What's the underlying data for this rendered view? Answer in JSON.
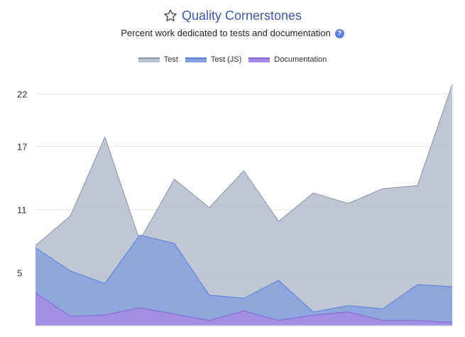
{
  "header": {
    "title": "Quality Cornerstones",
    "subtitle": "Percent work dedicated to tests and documentation",
    "title_color": "#3d5aa6"
  },
  "icons": {
    "title": "star-icon",
    "help": "question-circle-icon"
  },
  "chart_data": {
    "type": "area",
    "title": "Quality Cornerstones",
    "subtitle": "Percent work dedicated to tests and documentation",
    "xlabel": "",
    "ylabel": "",
    "ylim": [
      0,
      23.5
    ],
    "yticks": [
      5,
      11,
      17,
      22
    ],
    "grid": true,
    "legend_position": "top-center",
    "stacked": false,
    "x": [
      0,
      1,
      2,
      3,
      4,
      5,
      6,
      7,
      8,
      9,
      10,
      11,
      12
    ],
    "series": [
      {
        "name": "Test",
        "color": "#bcc3d2",
        "line_color": "#8a93a6",
        "values": [
          7.6,
          10.4,
          17.9,
          8.1,
          13.9,
          11.2,
          14.7,
          9.9,
          12.6,
          11.6,
          13.0,
          13.3,
          22.9
        ]
      },
      {
        "name": "Test (JS)",
        "color": "#86a1de",
        "line_color": "#5a7fd6",
        "values": [
          7.4,
          5.2,
          4.0,
          8.6,
          7.8,
          2.9,
          2.6,
          4.3,
          1.3,
          1.9,
          1.6,
          3.9,
          3.7
        ]
      },
      {
        "name": "Documentation",
        "color": "#a78ae6",
        "line_color": "#8466d8",
        "values": [
          3.1,
          0.9,
          1.0,
          1.7,
          1.1,
          0.5,
          1.4,
          0.5,
          1.0,
          1.3,
          0.5,
          0.5,
          0.3
        ]
      }
    ]
  }
}
